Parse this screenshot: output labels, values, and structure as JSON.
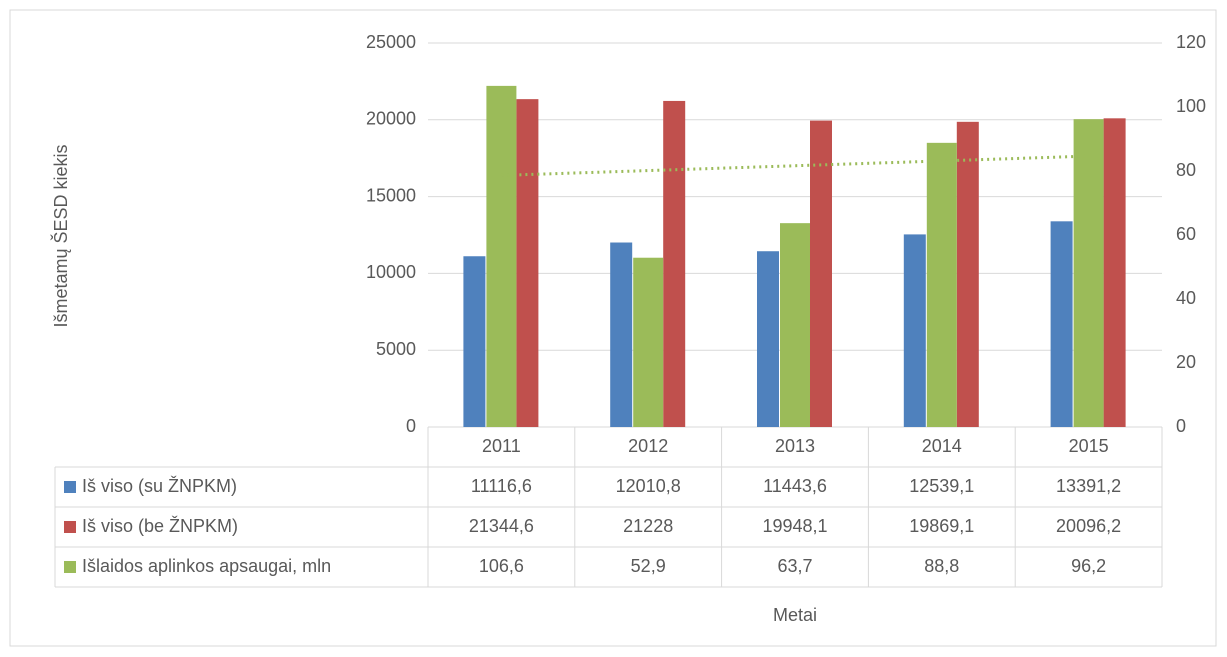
{
  "chart_data": {
    "type": "bar",
    "ylabel": "Išmetamų ŠESD kiekis",
    "xlabel": "Metai",
    "categories": [
      "2011",
      "2012",
      "2013",
      "2014",
      "2015"
    ],
    "series": [
      {
        "name": "Iš viso (su ŽNPKM)",
        "color": "#4f81bd",
        "values": [
          11116.6,
          12010.8,
          11443.6,
          12539.1,
          13391.2
        ],
        "value_labels": [
          "11116,6",
          "12010,8",
          "11443,6",
          "12539,1",
          "13391,2"
        ]
      },
      {
        "name": "Iš viso (be ŽNPKM)",
        "color": "#c0504d",
        "values": [
          21344.6,
          21228,
          19948.1,
          19869.1,
          20096.2
        ],
        "value_labels": [
          "21344,6",
          "21228",
          "19948,1",
          "19869,1",
          "20096,2"
        ]
      },
      {
        "name": "Išlaidos aplinkos apsaugai, mln",
        "color": "#9bbb59",
        "axis": "y2",
        "trendline": "linear",
        "values": [
          106.6,
          52.9,
          63.7,
          88.8,
          96.2
        ],
        "value_labels": [
          "106,6",
          "52,9",
          "63,7",
          "88,8",
          "96,2"
        ]
      }
    ],
    "ylim": [
      0,
      25000
    ],
    "yticks": [
      0,
      5000,
      10000,
      15000,
      20000,
      25000
    ],
    "y2lim": [
      0,
      120
    ],
    "y2ticks": [
      0,
      20,
      40,
      60,
      80,
      100,
      120
    ],
    "grid": true
  }
}
